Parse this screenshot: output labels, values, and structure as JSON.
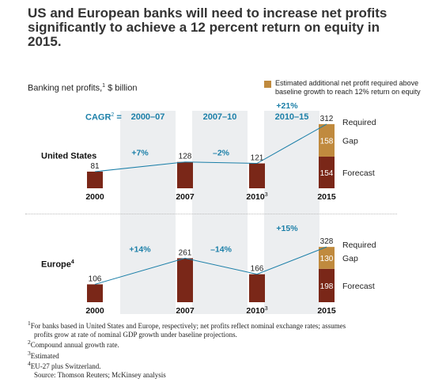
{
  "header": {
    "title": "US and European banks will need to increase net profits significantly to achieve a 12 percent return on equity in 2015.",
    "subtitle": "Banking net profits,",
    "subtitle_sup": "1",
    "subtitle_unit": " $ billion"
  },
  "legend": {
    "text": "Estimated additional net profit required above baseline growth to reach 12% return on equity",
    "color": "#c08a3e"
  },
  "cagr": {
    "label": "CAGR",
    "sup": "2",
    "eq": " =",
    "periods": [
      "2000–07",
      "2007–10",
      "2010–15"
    ]
  },
  "colors": {
    "bar": "#7a2718",
    "gap": "#c08a3e",
    "line": "#1b7fa8",
    "band": "#eceef0"
  },
  "chart_data": [
    {
      "type": "bar",
      "region": "United States",
      "region_sup": "",
      "categories": [
        "2000",
        "2007",
        "2010",
        "2015"
      ],
      "category_sups": [
        "",
        "",
        "3",
        ""
      ],
      "values": [
        81,
        128,
        121,
        154
      ],
      "gap": 158,
      "required": 312,
      "growth": [
        "+7%",
        "–2%",
        "+21%"
      ],
      "stack_labels": [
        "Required",
        "Gap",
        "Forecast"
      ]
    },
    {
      "type": "bar",
      "region": "Europe",
      "region_sup": "4",
      "categories": [
        "2000",
        "2007",
        "2010",
        "2015"
      ],
      "category_sups": [
        "",
        "",
        "3",
        ""
      ],
      "values": [
        106,
        261,
        166,
        198
      ],
      "gap": 130,
      "required": 328,
      "growth": [
        "+14%",
        "–14%",
        "+15%"
      ],
      "stack_labels": [
        "Required",
        "Gap",
        "Forecast"
      ]
    }
  ],
  "footnotes": {
    "note1_mark": "1",
    "note1": "For banks based in United States and Europe, respectively; net profits reflect nominal exchange rates; assumes",
    "note1b": "profits grow at rate of nominal GDP growth under baseline projections.",
    "note2_mark": "2",
    "note2": "Compound annual growth rate.",
    "note3_mark": "3",
    "note3": "Estimated",
    "note4_mark": "4",
    "note4": "EU-27 plus Switzerland.",
    "source": "Source: Thomson Reuters; McKinsey analysis"
  }
}
